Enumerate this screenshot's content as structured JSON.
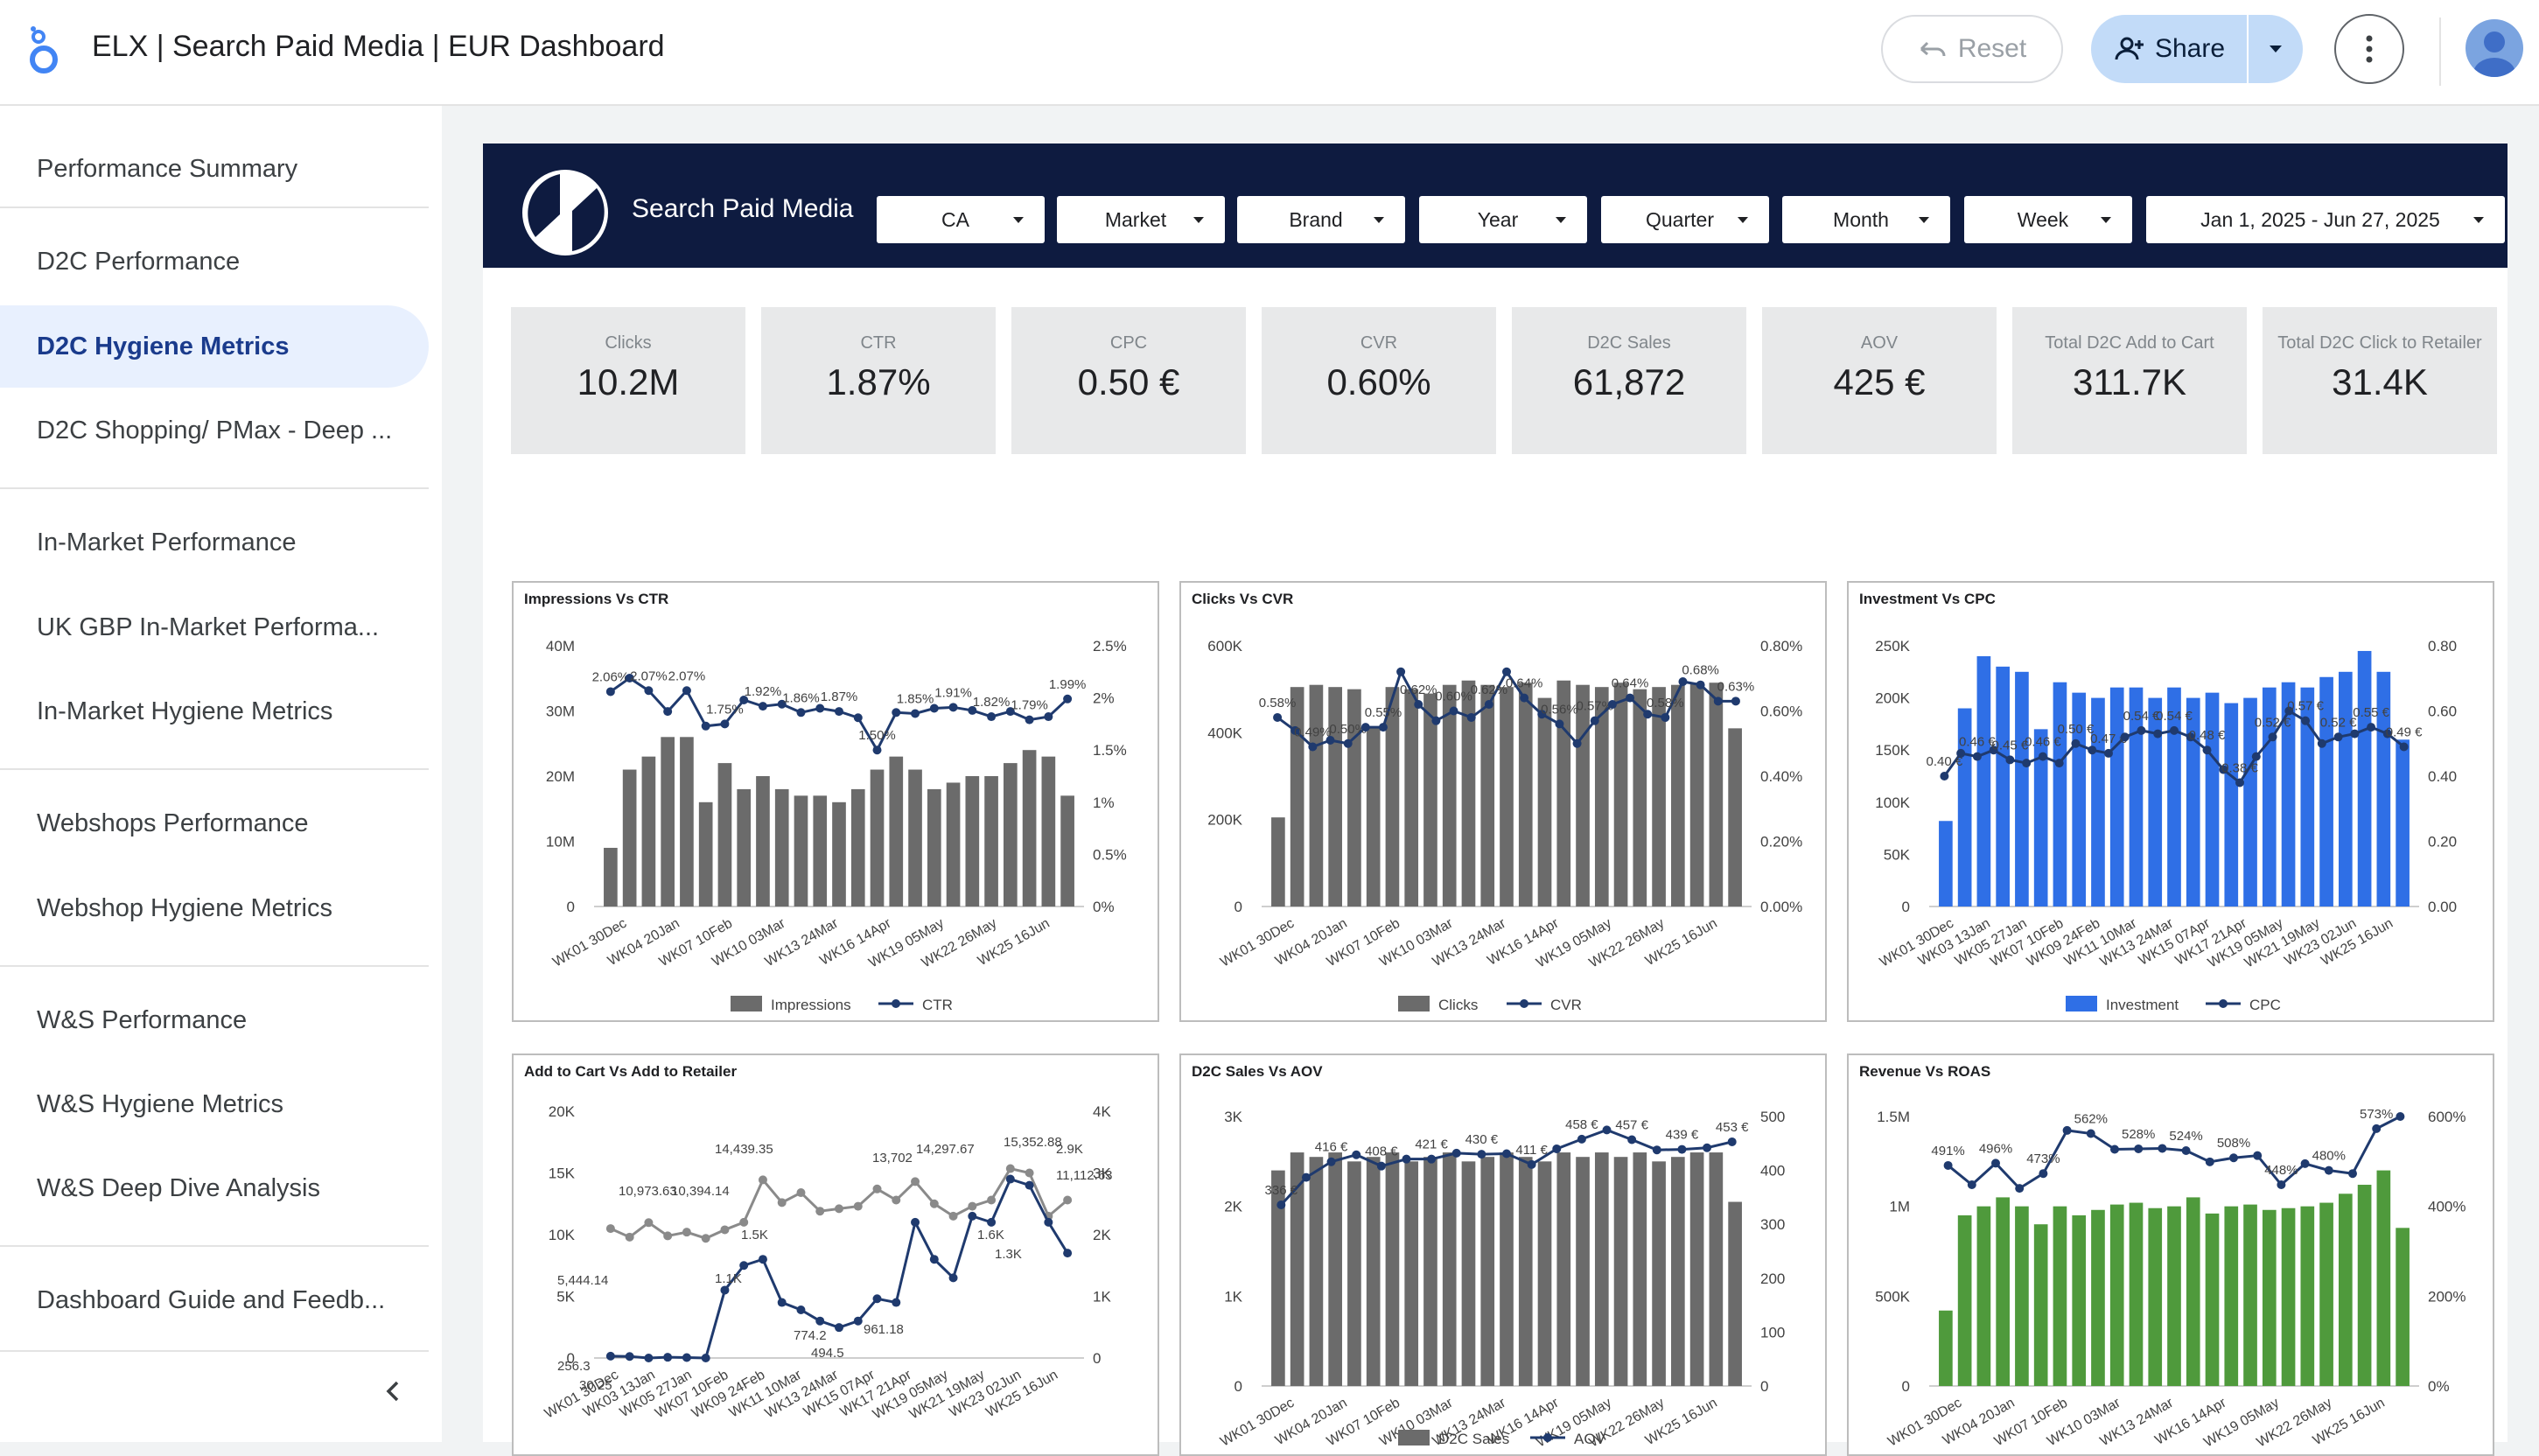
{
  "app": {
    "title": "ELX | Search Paid Media | EUR Dashboard",
    "reset_label": "Reset",
    "share_label": "Share"
  },
  "sidebar": {
    "items": [
      {
        "label": "Performance Summary"
      },
      {
        "label": "D2C Performance"
      },
      {
        "label": "D2C Hygiene Metrics"
      },
      {
        "label": "D2C Shopping/ PMax - Deep ..."
      },
      {
        "label": "In-Market Performance"
      },
      {
        "label": "UK GBP In-Market Performa..."
      },
      {
        "label": "In-Market Hygiene Metrics"
      },
      {
        "label": "Webshops Performance"
      },
      {
        "label": "Webshop Hygiene Metrics"
      },
      {
        "label": "W&S Performance"
      },
      {
        "label": "W&S Hygiene Metrics"
      },
      {
        "label": "W&S Deep Dive Analysis"
      },
      {
        "label": "Dashboard Guide and Feedb..."
      }
    ],
    "active_index": 2
  },
  "report": {
    "title": "Search Paid Media",
    "filters": [
      "CA",
      "Market",
      "Brand",
      "Year",
      "Quarter",
      "Month",
      "Week",
      "Jan 1, 2025 - Jun 27, 2025"
    ],
    "kpis": [
      {
        "label": "Clicks",
        "value": "10.2M"
      },
      {
        "label": "CTR",
        "value": "1.87%"
      },
      {
        "label": "CPC",
        "value": "0.50 €"
      },
      {
        "label": "CVR",
        "value": "0.60%"
      },
      {
        "label": "D2C Sales",
        "value": "61,872"
      },
      {
        "label": "AOV",
        "value": "425 €"
      },
      {
        "label": "Total D2C Add to Cart",
        "value": "311.7K"
      },
      {
        "label": "Total D2C Click to Retailer",
        "value": "31.4K"
      }
    ]
  },
  "colors": {
    "gray_bar": "#6b6b6b",
    "blue_bar": "#2f6fe6",
    "green_bar": "#4f9a3c",
    "line": "#1f3a6e",
    "header": "#0e1b40"
  },
  "chart_data": [
    {
      "type": "bar",
      "title": "Impressions Vs CTR",
      "categories_shown": [
        "WK01 30Dec",
        "WK04 20Jan",
        "WK07 10Feb",
        "WK10 03Mar",
        "WK13 24Mar",
        "WK16 14Apr",
        "WK19 05May",
        "WK22 26May",
        "WK25 16Jun"
      ],
      "y_ticks": [
        "0",
        "10M",
        "20M",
        "30M",
        "40M"
      ],
      "y2_ticks": [
        "0%",
        "0.5%",
        "1%",
        "1.5%",
        "2%",
        "2.5%"
      ],
      "ylim": [
        0,
        40000000
      ],
      "y2lim": [
        0,
        2.5
      ],
      "series": [
        {
          "name": "Impressions",
          "type": "bar",
          "values": [
            9000000,
            21000000,
            23000000,
            26000000,
            26000000,
            16000000,
            22000000,
            18000000,
            20000000,
            18000000,
            17000000,
            17000000,
            16000000,
            18000000,
            21000000,
            23000000,
            21000000,
            18000000,
            19000000,
            20000000,
            20000000,
            22000000,
            24000000,
            23000000,
            17000000
          ]
        },
        {
          "name": "CTR",
          "type": "line",
          "values": [
            2.06,
            2.19,
            2.07,
            1.87,
            2.07,
            1.73,
            1.75,
            1.98,
            1.92,
            1.94,
            1.86,
            1.9,
            1.87,
            1.81,
            1.5,
            1.86,
            1.85,
            1.9,
            1.91,
            1.88,
            1.82,
            1.87,
            1.79,
            1.82,
            1.99
          ]
        }
      ],
      "legend": [
        "Impressions",
        "CTR"
      ]
    },
    {
      "type": "bar",
      "title": "Clicks Vs CVR",
      "categories_shown": [
        "WK01 30Dec",
        "WK04 20Jan",
        "WK07 10Feb",
        "WK10 03Mar",
        "WK13 24Mar",
        "WK16 14Apr",
        "WK19 05May",
        "WK22 26May",
        "WK25 16Jun"
      ],
      "y_ticks": [
        "0",
        "200K",
        "400K",
        "600K"
      ],
      "y2_ticks": [
        "0.00%",
        "0.20%",
        "0.40%",
        "0.60%",
        "0.80%"
      ],
      "ylim": [
        0,
        600000
      ],
      "y2lim": [
        0,
        0.8
      ],
      "series": [
        {
          "name": "Clicks",
          "type": "bar",
          "values": [
            205000,
            505000,
            510000,
            505000,
            500000,
            410000,
            505000,
            500000,
            490000,
            510000,
            520000,
            510000,
            505000,
            515000,
            480000,
            520000,
            510000,
            505000,
            515000,
            500000,
            505000,
            510000,
            515000,
            515000,
            410000
          ]
        },
        {
          "name": "CVR",
          "type": "line",
          "values": [
            0.58,
            0.54,
            0.49,
            0.51,
            0.5,
            0.55,
            0.55,
            0.72,
            0.62,
            0.57,
            0.6,
            0.58,
            0.62,
            0.72,
            0.64,
            0.59,
            0.56,
            0.5,
            0.57,
            0.62,
            0.64,
            0.59,
            0.58,
            0.69,
            0.68,
            0.63,
            0.63
          ]
        }
      ],
      "legend": [
        "Clicks",
        "CVR"
      ]
    },
    {
      "type": "bar",
      "title": "Investment Vs CPC",
      "categories_shown": [
        "WK01 30Dec",
        "WK03 13Jan",
        "WK05 27Jan",
        "WK07 10Feb",
        "WK09 24Feb",
        "WK11 10Mar",
        "WK13 24Mar",
        "WK15 07Apr",
        "WK17 21Apr",
        "WK19 05May",
        "WK21 19May",
        "WK23 02Jun",
        "WK25 16Jun"
      ],
      "y_ticks": [
        "0",
        "50K",
        "100K",
        "150K",
        "200K",
        "250K"
      ],
      "y2_ticks": [
        "0.00",
        "0.20",
        "0.40",
        "0.60",
        "0.80"
      ],
      "ylim": [
        0,
        250000
      ],
      "y2lim": [
        0,
        0.8
      ],
      "series": [
        {
          "name": "Investment",
          "type": "bar",
          "values": [
            82000,
            190000,
            240000,
            230000,
            225000,
            170000,
            215000,
            205000,
            200000,
            210000,
            210000,
            200000,
            210000,
            200000,
            205000,
            195000,
            200000,
            210000,
            215000,
            210000,
            220000,
            225000,
            245000,
            225000,
            160000
          ]
        },
        {
          "name": "CPC",
          "type": "line",
          "values": [
            0.4,
            0.47,
            0.46,
            0.48,
            0.45,
            0.44,
            0.46,
            0.44,
            0.5,
            0.48,
            0.47,
            0.52,
            0.54,
            0.53,
            0.54,
            0.52,
            0.48,
            0.42,
            0.38,
            0.46,
            0.52,
            0.6,
            0.57,
            0.5,
            0.52,
            0.53,
            0.55,
            0.53,
            0.49
          ]
        }
      ],
      "legend": [
        "Investment",
        "CPC"
      ]
    },
    {
      "type": "line",
      "title": "Add to Cart Vs Add to Retailer",
      "categories_shown": [
        "WK01 30Dec",
        "WK03 13Jan",
        "WK05 27Jan",
        "WK07 10Feb",
        "WK09 24Feb",
        "WK11 10Mar",
        "WK13 24Mar",
        "WK15 07Apr",
        "WK17 21Apr",
        "WK19 05May",
        "WK21 19May",
        "WK23 02Jun",
        "WK25 16Jun"
      ],
      "y_ticks": [
        "0",
        "5K",
        "10K",
        "15K",
        "20K"
      ],
      "y2_ticks": [
        "0",
        "1K",
        "2K",
        "3K",
        "4K"
      ],
      "ylim": [
        0,
        20000
      ],
      "y2lim": [
        0,
        4000
      ],
      "data_labels": [
        "14,439.35",
        "13,702",
        "14,297.67",
        "15,352.88",
        "10,973.63",
        "10,394.14",
        "5,444.14",
        "256.3",
        "30.25",
        "961.18",
        "774.2",
        "494.5",
        "1.5K",
        "1.6K",
        "1.3K",
        "1.1K",
        "2.9K",
        "11,112.63"
      ],
      "series": [
        {
          "name": "Add to Cart",
          "type": "line",
          "axis": "left",
          "values": [
            10490,
            9800,
            10973,
            9900,
            10200,
            9700,
            10394,
            11000,
            14439,
            12600,
            13400,
            11900,
            12100,
            12300,
            13702,
            12800,
            14297,
            12500,
            11500,
            12300,
            12800,
            15352,
            15000,
            11500,
            12800
          ]
        },
        {
          "name": "Add to Retailer",
          "type": "line",
          "axis": "right",
          "values": [
            30,
            25,
            0,
            12,
            7,
            0,
            1100,
            1500,
            1600,
            900,
            780,
            600,
            494,
            600,
            961,
            900,
            2200,
            1600,
            1300,
            2300,
            2200,
            2900,
            2800,
            2200,
            1700
          ]
        }
      ]
    },
    {
      "type": "bar",
      "title": "D2C Sales Vs AOV",
      "categories_shown": [
        "WK01 30Dec",
        "WK04 20Jan",
        "WK07 10Feb",
        "WK10 03Mar",
        "WK13 24Mar",
        "WK16 14Apr",
        "WK19 05May",
        "WK22 26May",
        "WK25 16Jun"
      ],
      "y_ticks": [
        "0",
        "1K",
        "2K",
        "3K"
      ],
      "y2_ticks": [
        "0",
        "100",
        "200",
        "300",
        "400",
        "500"
      ],
      "ylim": [
        0,
        3000
      ],
      "y2lim": [
        0,
        500
      ],
      "series": [
        {
          "name": "D2C Sales",
          "type": "bar",
          "values": [
            2400,
            2600,
            2550,
            2600,
            2500,
            2550,
            2600,
            2500,
            2550,
            2600,
            2500,
            2550,
            2600,
            2550,
            2500,
            2600,
            2550,
            2600,
            2550,
            2600,
            2500,
            2550,
            2600,
            2600,
            2050
          ]
        },
        {
          "name": "AOV",
          "type": "line",
          "values": [
            336,
            387,
            416,
            429,
            408,
            421,
            421,
            432,
            430,
            431,
            411,
            440,
            458,
            475,
            457,
            438,
            439,
            442,
            453
          ]
        }
      ],
      "legend": [
        "D2C Sales",
        "AOV"
      ]
    },
    {
      "type": "bar",
      "title": "Revenue Vs ROAS",
      "categories_shown": [
        "WK01 30Dec",
        "WK04 20Jan",
        "WK07 10Feb",
        "WK10 03Mar",
        "WK13 24Mar",
        "WK16 14Apr",
        "WK19 05May",
        "WK22 26May",
        "WK25 16Jun"
      ],
      "y_ticks": [
        "0",
        "500K",
        "1M",
        "1.5M"
      ],
      "y2_ticks": [
        "0%",
        "200%",
        "400%",
        "600%"
      ],
      "ylim": [
        0,
        1500000
      ],
      "y2lim": [
        0,
        600
      ],
      "series": [
        {
          "name": "Revenue",
          "type": "bar",
          "values": [
            420000,
            950000,
            1000000,
            1050000,
            1000000,
            900000,
            1000000,
            950000,
            980000,
            1010000,
            1020000,
            990000,
            1000000,
            1050000,
            960000,
            1000000,
            1010000,
            980000,
            990000,
            1000000,
            1020000,
            1070000,
            1120000,
            1200000,
            880000
          ]
        },
        {
          "name": "ROAS",
          "type": "line",
          "values": [
            491,
            448,
            496,
            440,
            473,
            569,
            562,
            527,
            528,
            529,
            524,
            499,
            508,
            513,
            448,
            495,
            480,
            473,
            573,
            600
          ]
        }
      ]
    }
  ]
}
